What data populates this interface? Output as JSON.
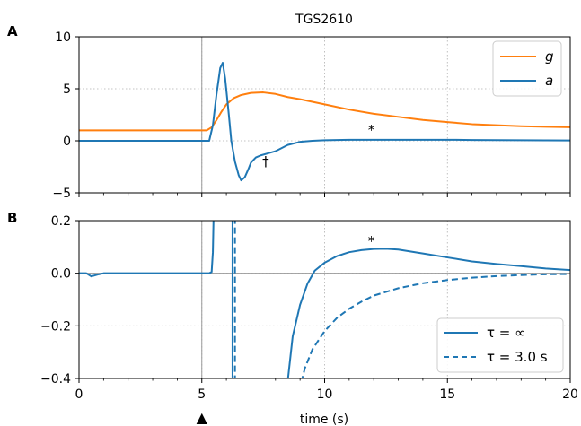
{
  "chart_data": [
    {
      "panel": "A",
      "type": "line",
      "title": "TGS2610",
      "xlim": [
        0,
        20
      ],
      "ylim": [
        -5,
        10
      ],
      "yticks": [
        "−5",
        "0",
        "5",
        "10"
      ],
      "yticks_values": [
        -5,
        0,
        5,
        10
      ],
      "xticks_values": [
        5,
        10,
        15
      ],
      "grid": true,
      "legend_placement": "top-right",
      "series": [
        {
          "name": "g",
          "color": "#ff7f0e",
          "x": [
            0,
            5.2,
            5.4,
            5.6,
            5.8,
            6.0,
            6.3,
            6.6,
            7.0,
            7.5,
            8.0,
            8.5,
            9.0,
            10,
            11,
            12,
            13,
            14,
            15,
            16,
            17,
            18,
            19,
            20
          ],
          "y": [
            1.0,
            1.0,
            1.3,
            2.0,
            2.8,
            3.5,
            4.1,
            4.4,
            4.6,
            4.65,
            4.5,
            4.2,
            4.0,
            3.5,
            3.0,
            2.6,
            2.3,
            2.0,
            1.8,
            1.6,
            1.5,
            1.4,
            1.35,
            1.3
          ]
        },
        {
          "name": "a",
          "color": "#1f77b4",
          "x": [
            0,
            5.3,
            5.45,
            5.6,
            5.75,
            5.85,
            5.95,
            6.1,
            6.2,
            6.35,
            6.5,
            6.6,
            6.75,
            6.9,
            7.0,
            7.2,
            7.4,
            7.7,
            8.0,
            8.5,
            9.0,
            9.5,
            10,
            11,
            12,
            13,
            14,
            15,
            16,
            17,
            18,
            19,
            20
          ],
          "y": [
            0,
            0,
            1.5,
            4.5,
            7.0,
            7.5,
            6.0,
            2.5,
            0,
            -2.0,
            -3.3,
            -3.8,
            -3.5,
            -2.7,
            -2.1,
            -1.6,
            -1.4,
            -1.2,
            -1.0,
            -0.4,
            -0.1,
            0.0,
            0.05,
            0.1,
            0.1,
            0.1,
            0.1,
            0.1,
            0.08,
            0.06,
            0.05,
            0.04,
            0.03
          ]
        }
      ],
      "annotations": [
        {
          "text": "*",
          "x": 11.9,
          "y": 0.6
        },
        {
          "text": "†",
          "x": 7.6,
          "y": -2.4
        }
      ],
      "vline_x": 5.0
    },
    {
      "panel": "B",
      "type": "line",
      "xlabel": "time (s)",
      "xlim": [
        0,
        20
      ],
      "ylim": [
        -0.4,
        0.2
      ],
      "xticks": [
        "0",
        "5",
        "10",
        "15",
        "20"
      ],
      "xticks_values": [
        0,
        5,
        10,
        15,
        20
      ],
      "yticks": [
        "−0.4",
        "−0.2",
        "0.0",
        "0.2"
      ],
      "yticks_values": [
        -0.4,
        -0.2,
        0.0,
        0.2
      ],
      "grid": true,
      "legend_placement": "bottom-right",
      "series": [
        {
          "name": "τ = ∞",
          "color": "#1f77b4",
          "dash": "solid",
          "segments": [
            {
              "x": [
                0,
                0.3,
                0.5,
                0.8,
                1.0,
                2.0,
                3.0,
                4.0,
                5.0,
                5.3,
                5.4,
                5.45,
                5.48
              ],
              "y": [
                0,
                0,
                -0.012,
                -0.004,
                0,
                0,
                0,
                0,
                0,
                0,
                0.005,
                0.08,
                0.22
              ]
            },
            {
              "x": [
                6.25,
                6.25
              ],
              "y": [
                -0.45,
                0.22
              ]
            },
            {
              "x": [
                8.45,
                8.7,
                9.0,
                9.3,
                9.6,
                10.0,
                10.5,
                11.0,
                11.5,
                12.0,
                12.5,
                13.0,
                14.0,
                15.0,
                16.0,
                17.0,
                18.0,
                19.0,
                20.0
              ],
              "y": [
                -0.45,
                -0.24,
                -0.12,
                -0.04,
                0.01,
                0.04,
                0.065,
                0.08,
                0.088,
                0.092,
                0.093,
                0.09,
                0.075,
                0.06,
                0.045,
                0.035,
                0.027,
                0.018,
                0.012
              ]
            }
          ]
        },
        {
          "name": "τ = 3.0 s",
          "color": "#1f77b4",
          "dash": "dashed",
          "segments": [
            {
              "x": [
                6.35,
                6.35
              ],
              "y": [
                -0.45,
                0.22
              ]
            },
            {
              "x": [
                8.95,
                9.2,
                9.5,
                10.0,
                10.5,
                11.0,
                11.5,
                12.0,
                13.0,
                14.0,
                15.0,
                16.0,
                17.0,
                18.0,
                19.0,
                20.0
              ],
              "y": [
                -0.45,
                -0.36,
                -0.29,
                -0.22,
                -0.17,
                -0.135,
                -0.108,
                -0.085,
                -0.057,
                -0.038,
                -0.026,
                -0.017,
                -0.011,
                -0.007,
                -0.004,
                -0.003
              ]
            }
          ]
        }
      ],
      "annotations": [
        {
          "text": "*",
          "x": 11.9,
          "y": 0.105
        }
      ],
      "vline_x": 5.0,
      "marker_x": 5.0
    }
  ],
  "labels": {
    "panel_a": "A",
    "panel_b": "B",
    "title": "TGS2610",
    "xlabel": "time (s)",
    "legend_a_g": "g",
    "legend_a_a": "a",
    "legend_b_inf": "τ = ∞",
    "legend_b_tau": "τ = 3.0 s",
    "annot_star": "*",
    "annot_dagger": "†",
    "marker": "▲"
  }
}
